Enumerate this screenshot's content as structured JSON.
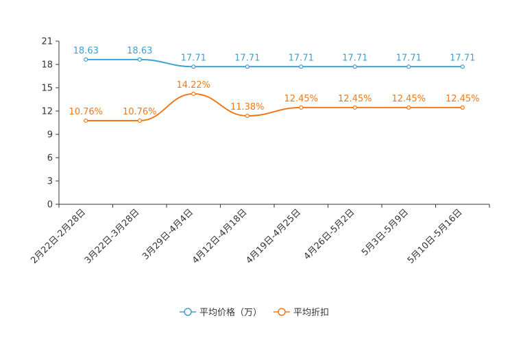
{
  "chart_data": {
    "type": "line",
    "categories": [
      "2月22日-2月28日",
      "3月22日-3月28日",
      "3月29日-4月4日",
      "4月12日-4月18日",
      "4月19日-4月25日",
      "4月26日-5月2日",
      "5月3日-5月9日",
      "5月10日-5月16日"
    ],
    "ylim": [
      0,
      21
    ],
    "yticks": [
      0,
      3,
      6,
      9,
      12,
      15,
      18,
      21
    ],
    "grid": false,
    "legend_position": "bottom-center",
    "series": [
      {
        "name": "平均价格（万）",
        "color": "#3ca0d2",
        "values": [
          18.63,
          18.63,
          17.71,
          17.71,
          17.71,
          17.71,
          17.71,
          17.71
        ],
        "labels": [
          "18.63",
          "18.63",
          "17.71",
          "17.71",
          "17.71",
          "17.71",
          "17.71",
          "17.71"
        ]
      },
      {
        "name": "平均折扣",
        "color": "#f07818",
        "values": [
          10.76,
          10.76,
          14.22,
          11.38,
          12.45,
          12.45,
          12.45,
          12.45
        ],
        "labels": [
          "10.76%",
          "10.76%",
          "14.22%",
          "11.38%",
          "12.45%",
          "12.45%",
          "12.45%",
          "12.45%"
        ]
      }
    ]
  }
}
